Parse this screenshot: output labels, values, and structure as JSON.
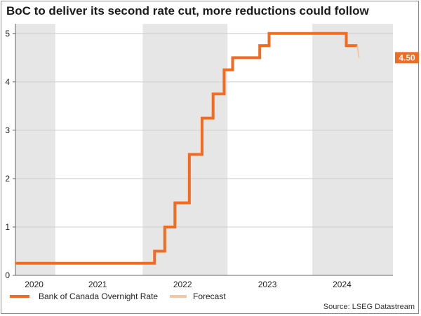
{
  "title": "BoC to deliver its second rate cut, more reductions could follow",
  "source": "Source: LSEG Datastream",
  "colors": {
    "main_series": "#f26b21",
    "forecast_series": "#f5c6a5",
    "shading": "#e6e6e6",
    "label_box": "#f26b21",
    "label_text": "#ffffff"
  },
  "chart_data": {
    "type": "line",
    "step": true,
    "xlabel": "",
    "ylabel": "",
    "xlim": [
      2020.0,
      2024.45
    ],
    "ylim": [
      0,
      5.2
    ],
    "yticks": [
      0,
      1,
      2,
      3,
      4,
      5
    ],
    "ytick_labels": [
      "0",
      "1",
      "2",
      "3",
      "4",
      "5"
    ],
    "xtick_labels": [
      {
        "label": "2020",
        "x": 2020.22
      },
      {
        "label": "2021",
        "x": 2020.97
      },
      {
        "label": "2022",
        "x": 2021.97
      },
      {
        "label": "2023",
        "x": 2022.97
      },
      {
        "label": "2024",
        "x": 2023.85
      }
    ],
    "shaded_years": [
      [
        2020.0,
        2020.47
      ],
      [
        2021.5,
        2022.5
      ],
      [
        2023.5,
        2024.45
      ]
    ],
    "series": [
      {
        "name": "Bank of Canada Overnight Rate",
        "x": [
          2020.0,
          2021.64,
          2021.76,
          2021.88,
          2022.05,
          2022.2,
          2022.33,
          2022.46,
          2022.56,
          2022.88,
          2022.99,
          2023.9,
          2024.03
        ],
        "y": [
          0.25,
          0.5,
          1.0,
          1.5,
          2.5,
          3.25,
          3.75,
          4.25,
          4.5,
          4.75,
          5.0,
          4.75,
          4.75
        ]
      },
      {
        "name": "Forecast",
        "x": [
          2024.03,
          2024.05
        ],
        "y": [
          4.75,
          4.5
        ]
      }
    ],
    "end_label": "4.50"
  }
}
